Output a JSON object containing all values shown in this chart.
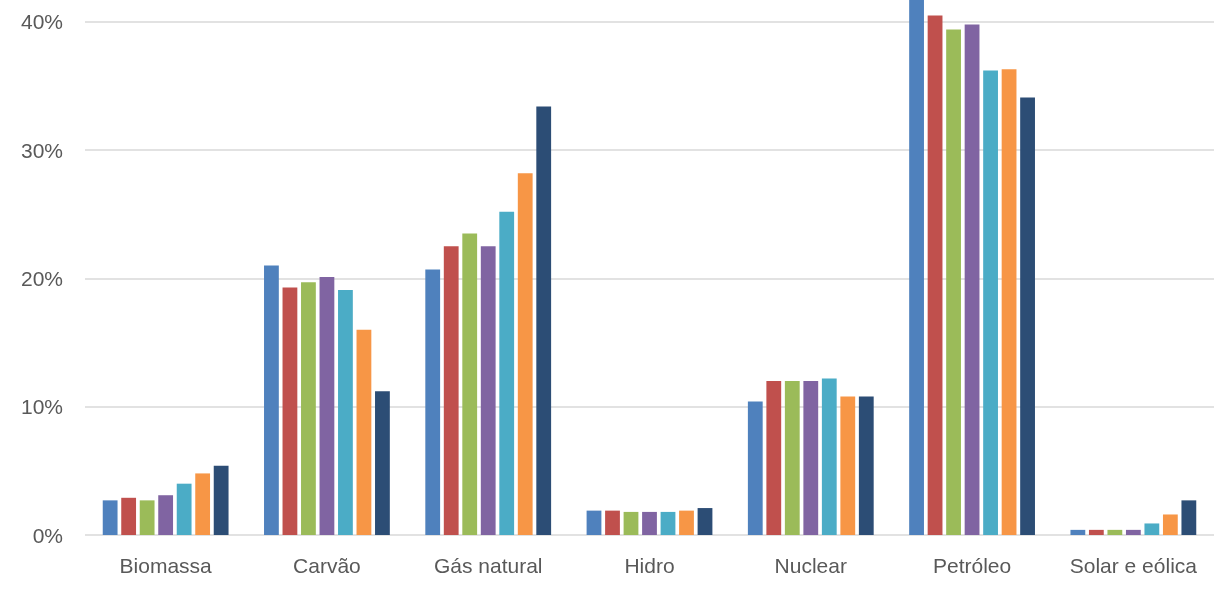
{
  "chart_data": {
    "type": "bar",
    "categories": [
      "Biomassa",
      "Carvão",
      "Gás natural",
      "Hidro",
      "Nuclear",
      "Petróleo",
      "Solar e eólica"
    ],
    "series": [
      {
        "color": "#4f81bd",
        "values": [
          2.7,
          21.0,
          20.7,
          1.9,
          10.4,
          41.7,
          0.4
        ]
      },
      {
        "color": "#c0504d",
        "values": [
          2.9,
          19.3,
          22.5,
          1.9,
          12.0,
          40.5,
          0.4
        ]
      },
      {
        "color": "#9bbb59",
        "values": [
          2.7,
          19.7,
          23.5,
          1.8,
          12.0,
          39.4,
          0.4
        ]
      },
      {
        "color": "#8064a2",
        "values": [
          3.1,
          20.1,
          22.5,
          1.8,
          12.0,
          39.8,
          0.4
        ]
      },
      {
        "color": "#4bacc6",
        "values": [
          4.0,
          19.1,
          25.2,
          1.8,
          12.2,
          36.2,
          0.9
        ]
      },
      {
        "color": "#f79646",
        "values": [
          4.8,
          16.0,
          28.2,
          1.9,
          10.8,
          36.3,
          1.6
        ]
      },
      {
        "color": "#2c4d75",
        "values": [
          5.4,
          11.2,
          33.4,
          2.1,
          10.8,
          34.1,
          2.7
        ]
      }
    ],
    "ylim": [
      0,
      41.7
    ],
    "yticks": [
      {
        "value": 0,
        "label": "0%"
      },
      {
        "value": 10,
        "label": "10%"
      },
      {
        "value": 20,
        "label": "20%"
      },
      {
        "value": 30,
        "label": "30%"
      },
      {
        "value": 40,
        "label": "40%"
      }
    ],
    "grid": "y"
  }
}
